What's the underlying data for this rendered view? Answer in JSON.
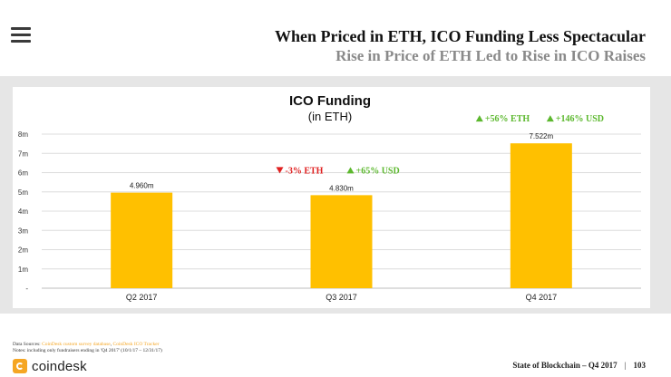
{
  "header": {
    "title": "When Priced in ETH, ICO Funding Less Spectacular",
    "subtitle": "Rise in Price of ETH Led to Rise in ICO Raises"
  },
  "chart_data": {
    "type": "bar",
    "title": "ICO Funding",
    "subtitle": "(in ETH)",
    "categories": [
      "Q2 2017",
      "Q3 2017",
      "Q4 2017"
    ],
    "values": [
      4.96,
      4.83,
      7.522
    ],
    "value_labels": [
      "4.960m",
      "4.830m",
      "7.522m"
    ],
    "y_ticks": [
      0,
      1,
      2,
      3,
      4,
      5,
      6,
      7,
      8
    ],
    "y_tick_labels": [
      "-",
      "1m",
      "2m",
      "3m",
      "4m",
      "5m",
      "6m",
      "7m",
      "8m"
    ],
    "ylim": [
      0,
      8
    ],
    "xlabel": "",
    "ylabel": "",
    "grid": true,
    "bar_color": "#FFC000",
    "annotations": [
      {
        "category": "Q3 2017",
        "eth_change": "-3% ETH",
        "eth_direction": "down",
        "usd_change": "+65% USD",
        "usd_direction": "up"
      },
      {
        "category": "Q4 2017",
        "eth_change": "+56% ETH",
        "eth_direction": "up",
        "usd_change": "+146% USD",
        "usd_direction": "up"
      }
    ]
  },
  "colors": {
    "up": "#5cb82e",
    "down": "#e02020",
    "accent": "#f5a623"
  },
  "footer": {
    "sources_label": "Data Sources:",
    "sources_link1": "CoinDesk custom survey database",
    "sources_link2": "CoinDesk ICO Tracker",
    "notes": "Notes: including only fundraisers ending in 'Q4 2017' (10/1/17 – 12/31/17)",
    "logo_text": "coindesk",
    "report": "State of Blockchain – Q4 2017",
    "sep": "|",
    "page": "103"
  }
}
